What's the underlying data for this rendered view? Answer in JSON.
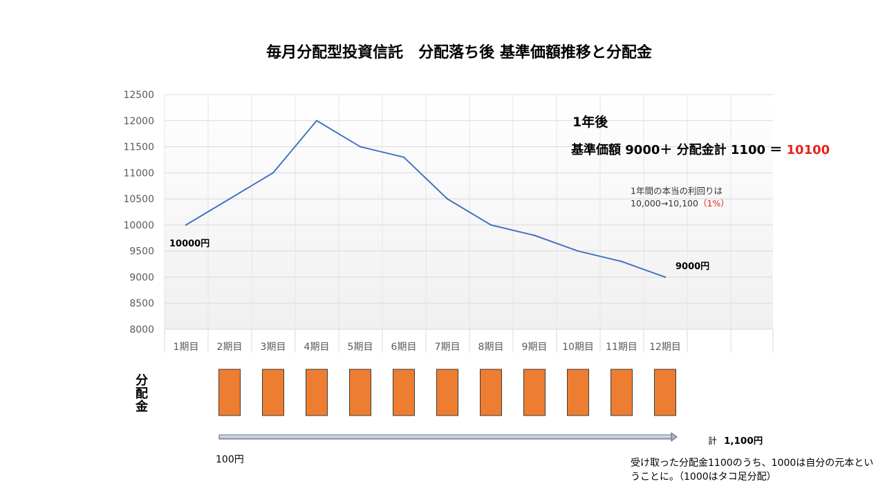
{
  "chart_data": {
    "type": "line",
    "title": "毎月分配型投資信託　分配落ち後 基準価額推移と分配金",
    "categories": [
      "1期目",
      "2期目",
      "3期目",
      "4期目",
      "5期目",
      "6期目",
      "7期目",
      "8期目",
      "9期目",
      "10期目",
      "11期目",
      "12期目"
    ],
    "series": [
      {
        "values": [
          10000,
          10500,
          11000,
          12000,
          11500,
          11300,
          10500,
          10000,
          9800,
          9500,
          9300,
          9000
        ]
      }
    ],
    "ylim": [
      8000,
      12500
    ],
    "yticks": [
      12500,
      12000,
      11500,
      11000,
      10500,
      10000,
      9500,
      9000,
      8500,
      8000
    ],
    "grid": true,
    "line_color": "#4472c4",
    "distributions": {
      "label": "分配金",
      "values": [
        100,
        100,
        100,
        100,
        100,
        100,
        100,
        100,
        100,
        100,
        100
      ],
      "bar_color": "#ed7d31",
      "per_period_label": "100円",
      "total_label": "計",
      "total_value": "1,100円"
    },
    "annotations": {
      "start_label": "10000円",
      "end_label": "9000円",
      "one_year": "1年後",
      "formula_prefix": "基準価額 9000＋ 分配金計 1100 ＝ ",
      "formula_result": "10100",
      "yield_line1": "1年間の本当の利回りは",
      "yield_line2_prefix": "10,000→10,100",
      "yield_line2_red": "（1%）",
      "footnote": "受け取った分配金1100のうち、1000は自分の元本ということに。（1000はタコ足分配）"
    }
  }
}
